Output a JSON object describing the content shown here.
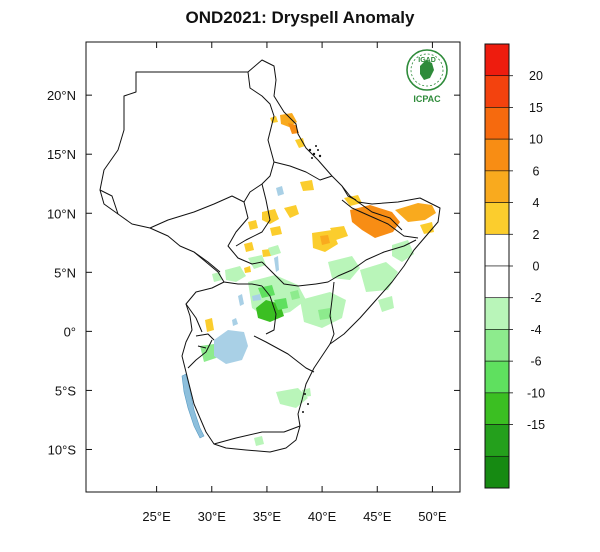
{
  "title": "OND2021: Dryspell Anomaly",
  "logo": {
    "top_text": "IGAD",
    "bottom_text": "ICPAC",
    "color": "#2e8b3a"
  },
  "chart_data": {
    "type": "heatmap",
    "title": "OND2021: Dryspell Anomaly",
    "lon_range": [
      18.6,
      52.5
    ],
    "lat_range": [
      -13.6,
      24.5
    ],
    "x_ticks": [
      {
        "value": 25,
        "label": "25°E"
      },
      {
        "value": 30,
        "label": "30°E"
      },
      {
        "value": 35,
        "label": "35°E"
      },
      {
        "value": 40,
        "label": "40°E"
      },
      {
        "value": 45,
        "label": "45°E"
      },
      {
        "value": 50,
        "label": "50°E"
      }
    ],
    "y_ticks": [
      {
        "value": 20,
        "label": "20°N"
      },
      {
        "value": 15,
        "label": "15°N"
      },
      {
        "value": 10,
        "label": "10°N"
      },
      {
        "value": 5,
        "label": "5°N"
      },
      {
        "value": 0,
        "label": "0°"
      },
      {
        "value": -5,
        "label": "5°S"
      },
      {
        "value": -10,
        "label": "10°S"
      }
    ],
    "colorbar": {
      "labels": [
        "20",
        "15",
        "10",
        "6",
        "4",
        "2",
        "0",
        "-2",
        "-4",
        "-6",
        "-10",
        "-15"
      ],
      "colors": [
        "#ee1c0e",
        "#f3420e",
        "#f66a0e",
        "#f88d14",
        "#f9aa1e",
        "#fbcd2d",
        "#ffffff",
        "#ffffff",
        "#b9f5b9",
        "#8deb8d",
        "#5fe05f",
        "#3bbf22",
        "#24a01c",
        "#168a12"
      ]
    },
    "colors": {
      "border": "#111111",
      "water": "#a9d0e6"
    }
  }
}
